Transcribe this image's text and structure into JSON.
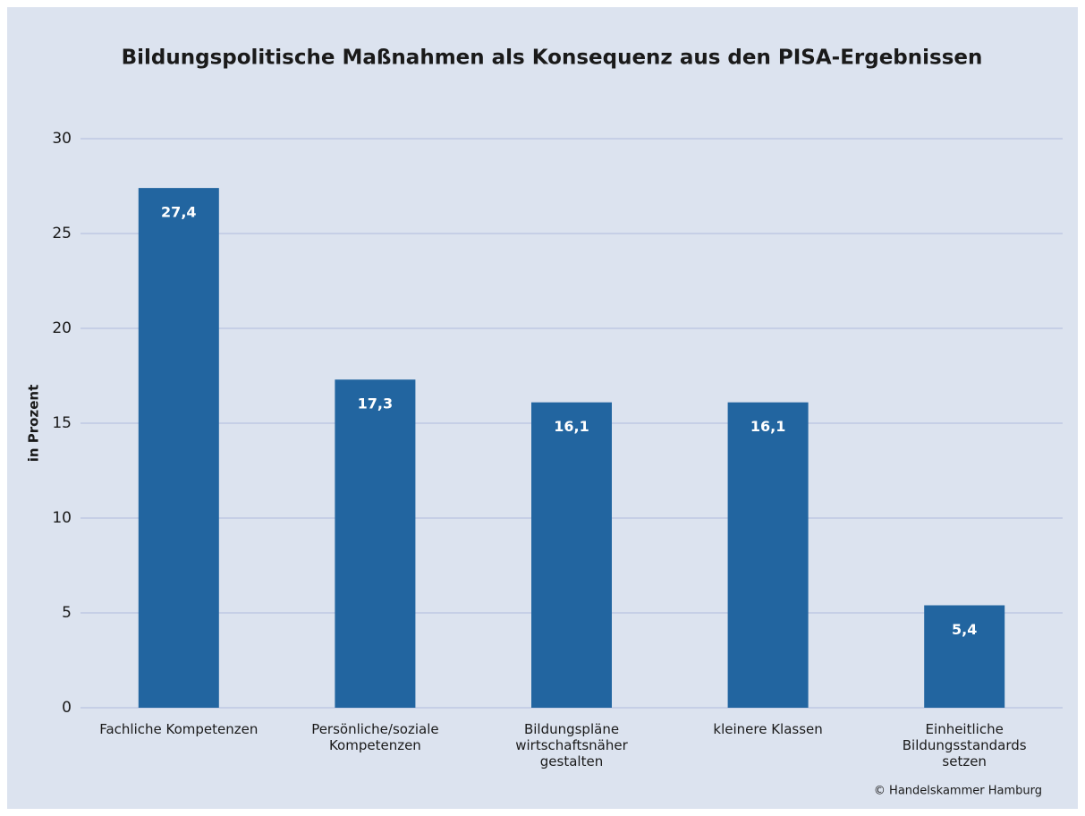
{
  "chart_data": {
    "type": "bar",
    "title": "Bildungspolitische Maßnahmen als Konsequenz aus den PISA-Ergebnissen",
    "y_label": "in Prozent",
    "source": "© Handelskammer Hamburg",
    "categories": [
      "Fachliche Kompetenzen",
      "Persönliche/soziale\nKompetenzen",
      "Bildungspläne\nwirtschaftsnäher\ngestalten",
      "kleinere Klassen",
      "Einheitliche\nBildungsstandards\nsetzen"
    ],
    "values": [
      27.4,
      17.3,
      16.1,
      16.1,
      5.4
    ],
    "value_labels": [
      "27,4",
      "17,3",
      "16,1",
      "16,1",
      "5,4"
    ],
    "color": "#2265a0",
    "ylim": [
      0,
      30
    ],
    "yticks": [
      0,
      5,
      10,
      15,
      20,
      25,
      30
    ],
    "grid": true
  }
}
